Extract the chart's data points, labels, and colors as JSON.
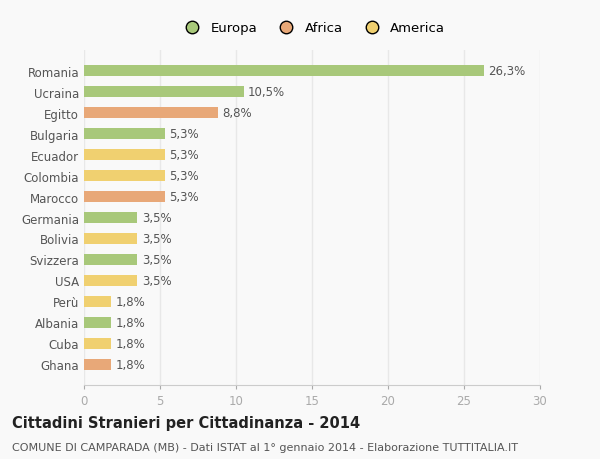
{
  "countries": [
    "Romania",
    "Ucraina",
    "Egitto",
    "Bulgaria",
    "Ecuador",
    "Colombia",
    "Marocco",
    "Germania",
    "Bolivia",
    "Svizzera",
    "USA",
    "Perù",
    "Albania",
    "Cuba",
    "Ghana"
  ],
  "values": [
    26.3,
    10.5,
    8.8,
    5.3,
    5.3,
    5.3,
    5.3,
    3.5,
    3.5,
    3.5,
    3.5,
    1.8,
    1.8,
    1.8,
    1.8
  ],
  "labels": [
    "26,3%",
    "10,5%",
    "8,8%",
    "5,3%",
    "5,3%",
    "5,3%",
    "5,3%",
    "3,5%",
    "3,5%",
    "3,5%",
    "3,5%",
    "1,8%",
    "1,8%",
    "1,8%",
    "1,8%"
  ],
  "colors": [
    "#a8c87a",
    "#a8c87a",
    "#e8a878",
    "#a8c87a",
    "#f0d070",
    "#f0d070",
    "#e8a878",
    "#a8c87a",
    "#f0d070",
    "#a8c87a",
    "#f0d070",
    "#f0d070",
    "#a8c87a",
    "#f0d070",
    "#e8a878"
  ],
  "legend_labels": [
    "Europa",
    "Africa",
    "America"
  ],
  "legend_colors": [
    "#a8c87a",
    "#e8a878",
    "#f0d070"
  ],
  "title": "Cittadini Stranieri per Cittadinanza - 2014",
  "subtitle": "COMUNE DI CAMPARADA (MB) - Dati ISTAT al 1° gennaio 2014 - Elaborazione TUTTITALIA.IT",
  "xlim": [
    0,
    30
  ],
  "xticks": [
    0,
    5,
    10,
    15,
    20,
    25,
    30
  ],
  "background_color": "#f9f9f9",
  "grid_color": "#e8e8e8",
  "bar_height": 0.55,
  "title_fontsize": 10.5,
  "subtitle_fontsize": 8,
  "tick_fontsize": 8.5,
  "label_fontsize": 8.5,
  "legend_fontsize": 9.5
}
